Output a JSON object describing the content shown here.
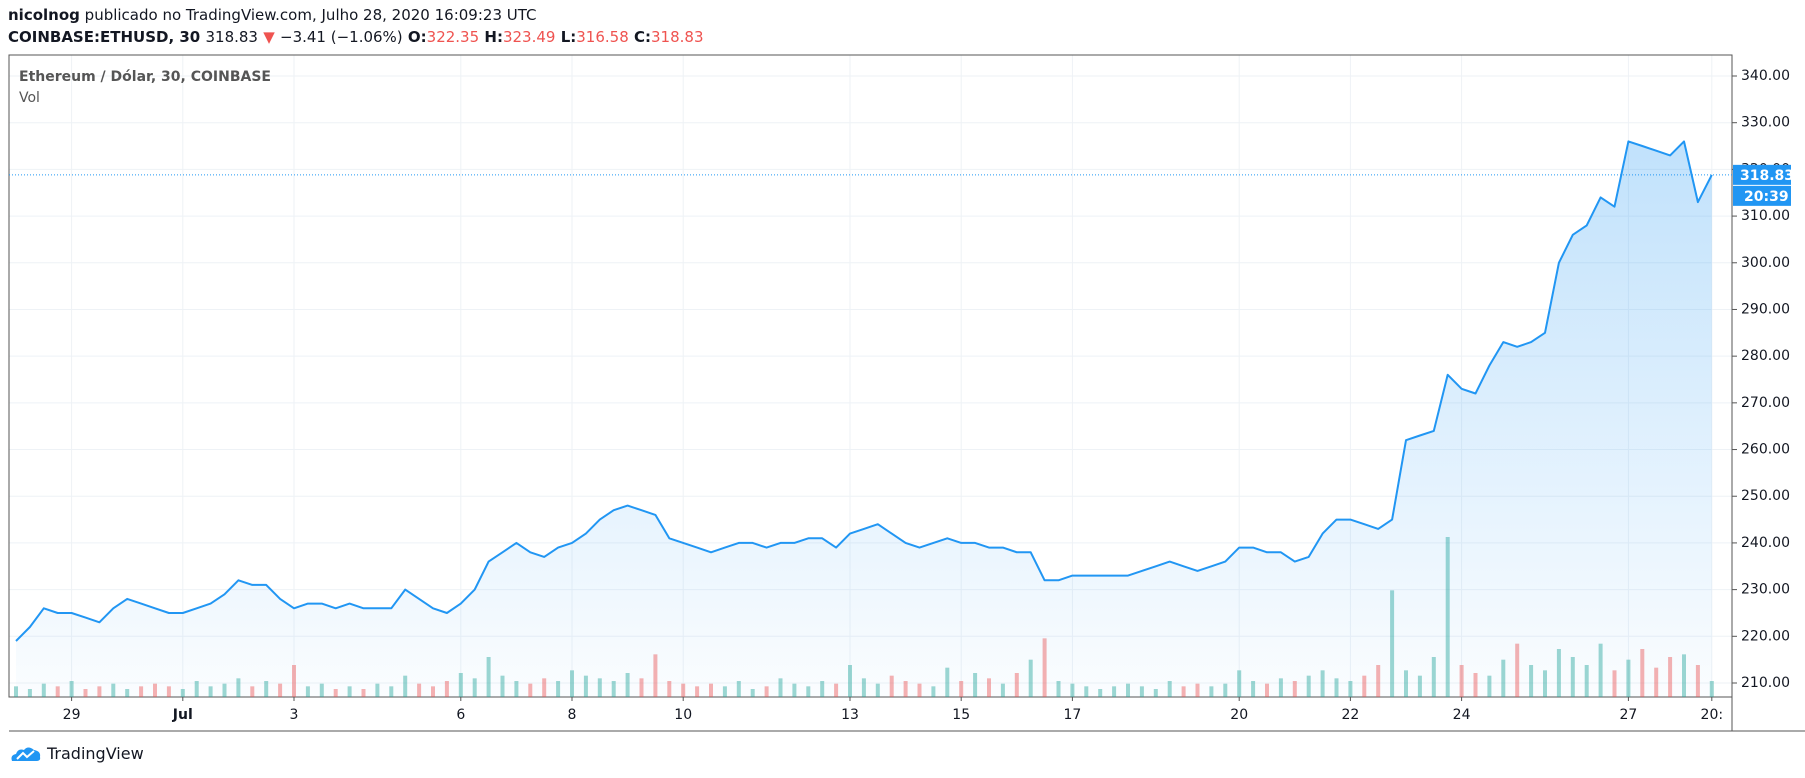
{
  "header": {
    "author": "nicolnog",
    "published": "publicado no TradingView.com, Julho 28, 2020 16:09:23 UTC",
    "symbol": "COINBASE:ETHUSD, 30",
    "last": 318.83,
    "arrow": "▼",
    "change": "−3.41 (−1.06%)",
    "open_label": "O:",
    "open": 322.35,
    "high_label": "H:",
    "high": 323.49,
    "low_label": "L:",
    "low": 316.58,
    "close_label": "C:",
    "close": 318.83
  },
  "footer": {
    "brand": "TradingView"
  },
  "chart_data": {
    "type": "line",
    "legend": {
      "title": "Ethereum / Dólar, 30, COINBASE",
      "volume": "Vol"
    },
    "countdown": "20:39",
    "categories": [
      null,
      null,
      null,
      null,
      "29",
      null,
      null,
      null,
      null,
      null,
      null,
      null,
      "Jul",
      null,
      null,
      null,
      null,
      null,
      null,
      null,
      "3",
      null,
      null,
      null,
      null,
      null,
      null,
      null,
      null,
      null,
      null,
      null,
      "6",
      null,
      null,
      null,
      null,
      null,
      null,
      null,
      "8",
      null,
      null,
      null,
      null,
      null,
      null,
      null,
      "10",
      null,
      null,
      null,
      null,
      null,
      null,
      null,
      null,
      null,
      null,
      null,
      "13",
      null,
      null,
      null,
      null,
      null,
      null,
      null,
      "15",
      null,
      null,
      null,
      null,
      null,
      null,
      null,
      "17",
      null,
      null,
      null,
      null,
      null,
      null,
      null,
      null,
      null,
      null,
      null,
      "20",
      null,
      null,
      null,
      null,
      null,
      null,
      null,
      "22",
      null,
      null,
      null,
      null,
      null,
      null,
      null,
      "24",
      null,
      null,
      null,
      null,
      null,
      null,
      null,
      null,
      null,
      null,
      null,
      "27",
      null,
      null,
      null,
      null,
      null,
      "20:"
    ],
    "series": [
      {
        "name": "Ethereum / Dólar",
        "color": "#2196f3",
        "values": [
          219,
          222,
          226,
          225,
          225,
          224,
          223,
          226,
          228,
          227,
          226,
          225,
          225,
          226,
          227,
          229,
          232,
          231,
          231,
          228,
          226,
          227,
          227,
          226,
          227,
          226,
          226,
          226,
          230,
          228,
          226,
          225,
          227,
          230,
          236,
          238,
          240,
          238,
          237,
          239,
          240,
          242,
          245,
          247,
          248,
          247,
          246,
          241,
          240,
          239,
          238,
          239,
          240,
          240,
          239,
          240,
          240,
          241,
          241,
          239,
          242,
          243,
          244,
          242,
          240,
          239,
          240,
          241,
          240,
          240,
          239,
          239,
          238,
          238,
          232,
          232,
          233,
          233,
          233,
          233,
          233,
          234,
          235,
          236,
          235,
          234,
          235,
          236,
          239,
          239,
          238,
          238,
          236,
          237,
          242,
          245,
          245,
          244,
          243,
          245,
          262,
          263,
          264,
          276,
          273,
          272,
          278,
          283,
          282,
          283,
          285,
          300,
          306,
          308,
          314,
          312,
          326,
          325,
          324,
          323,
          326,
          313,
          318.83
        ]
      },
      {
        "name": "Vol",
        "up_color": "#26a69a",
        "down_color": "#ef5350",
        "values": [
          4,
          3,
          5,
          4,
          6,
          3,
          4,
          5,
          3,
          4,
          5,
          4,
          3,
          6,
          4,
          5,
          7,
          4,
          6,
          5,
          12,
          4,
          5,
          3,
          4,
          3,
          5,
          4,
          8,
          5,
          4,
          6,
          9,
          7,
          15,
          8,
          6,
          5,
          7,
          6,
          10,
          8,
          7,
          6,
          9,
          7,
          16,
          6,
          5,
          4,
          5,
          4,
          6,
          3,
          4,
          7,
          5,
          4,
          6,
          5,
          12,
          7,
          5,
          8,
          6,
          5,
          4,
          11,
          6,
          9,
          7,
          5,
          9,
          14,
          22,
          6,
          5,
          4,
          3,
          4,
          5,
          4,
          3,
          6,
          4,
          5,
          4,
          5,
          10,
          6,
          5,
          7,
          6,
          8,
          10,
          7,
          6,
          8,
          12,
          40,
          10,
          8,
          15,
          60,
          12,
          9,
          8,
          14,
          20,
          12,
          10,
          18,
          15,
          12,
          20,
          10,
          14,
          18,
          11,
          15,
          16,
          12,
          6
        ]
      }
    ],
    "ylim": [
      207,
      344.5
    ],
    "yticks": [
      {
        "value": 210,
        "label": "210.00"
      },
      {
        "value": 220,
        "label": "220.00"
      },
      {
        "value": 230,
        "label": "230.00"
      },
      {
        "value": 240,
        "label": "240.00"
      },
      {
        "value": 250,
        "label": "250.00"
      },
      {
        "value": 260,
        "label": "260.00"
      },
      {
        "value": 270,
        "label": "270.00"
      },
      {
        "value": 280,
        "label": "280.00"
      },
      {
        "value": 290,
        "label": "290.00"
      },
      {
        "value": 300,
        "label": "300.00"
      },
      {
        "value": 310,
        "label": "310.00"
      },
      {
        "value": 320,
        "label": "320.00"
      },
      {
        "value": 330,
        "label": "330.00"
      },
      {
        "value": 340,
        "label": "340.00"
      }
    ],
    "grid": true
  }
}
